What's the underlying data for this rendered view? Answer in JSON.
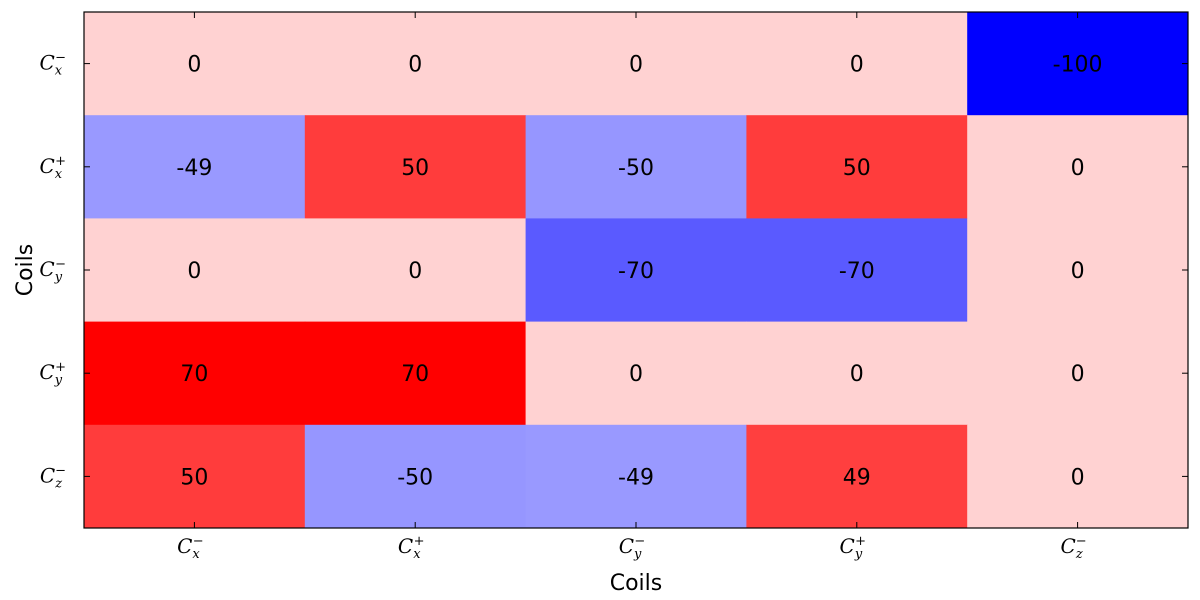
{
  "chart_data": {
    "type": "heatmap",
    "title": "",
    "xlabel": "Coils",
    "ylabel": "Coils",
    "x_categories": [
      {
        "base": "C",
        "sub": "x",
        "sup": "−"
      },
      {
        "base": "C",
        "sub": "x",
        "sup": "+"
      },
      {
        "base": "C",
        "sub": "y",
        "sup": "−"
      },
      {
        "base": "C",
        "sub": "y",
        "sup": "+"
      },
      {
        "base": "C",
        "sub": "z",
        "sup": "−"
      }
    ],
    "y_categories": [
      {
        "base": "C",
        "sub": "x",
        "sup": "−"
      },
      {
        "base": "C",
        "sub": "x",
        "sup": "+"
      },
      {
        "base": "C",
        "sub": "y",
        "sup": "−"
      },
      {
        "base": "C",
        "sub": "y",
        "sup": "+"
      },
      {
        "base": "C",
        "sub": "z",
        "sup": "−"
      }
    ],
    "values": [
      [
        0,
        0,
        0,
        0,
        -100
      ],
      [
        -49,
        50,
        -50,
        50,
        0
      ],
      [
        0,
        0,
        -70,
        -70,
        0
      ],
      [
        70,
        70,
        0,
        0,
        0
      ],
      [
        50,
        -50,
        -49,
        49,
        0
      ]
    ],
    "value_range": [
      -100,
      70
    ],
    "colormap": "bwr",
    "grid": false
  }
}
